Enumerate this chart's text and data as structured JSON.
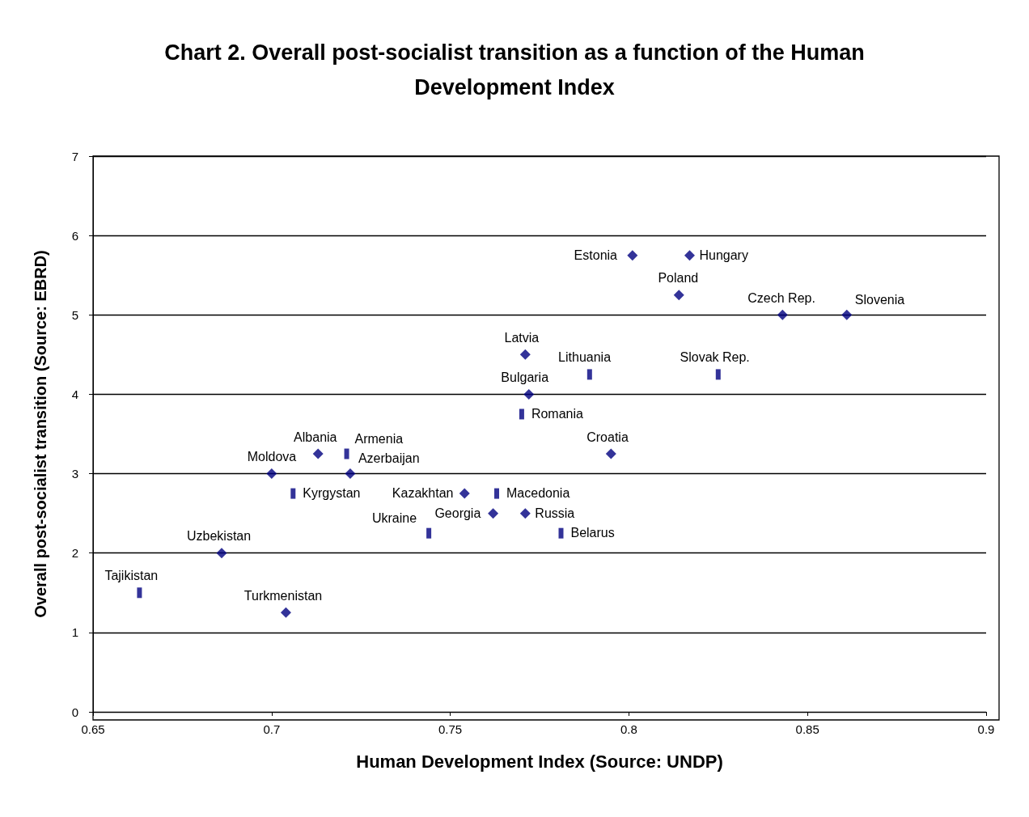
{
  "chart_data": {
    "type": "scatter",
    "title": "Chart 2. Overall post-socialist transition as a function of the Human\nDevelopment Index",
    "xlabel": "Human Development Index (Source: UNDP)",
    "ylabel": "Overall post-socialist transition (Source: EBRD)",
    "xlim": [
      0.65,
      0.9
    ],
    "xticks": [
      0.65,
      0.7,
      0.75,
      0.8,
      0.85,
      0.9
    ],
    "ylim": [
      0,
      7
    ],
    "yticks": [
      0,
      1,
      2,
      3,
      4,
      5,
      6,
      7
    ],
    "grid": "y",
    "series": [
      {
        "color": "#000080",
        "marker": "diamond",
        "x": [
          0.801,
          0.817,
          0.814,
          0.843,
          0.861,
          0.771,
          0.772,
          0.795,
          0.713,
          0.7,
          0.722,
          0.754,
          0.762,
          0.771,
          0.686,
          0.704
        ],
        "values": [
          5.75,
          5.75,
          5.25,
          5,
          5,
          4.5,
          4,
          3.25,
          3.25,
          3,
          3,
          2.75,
          2.5,
          2.5,
          2,
          1.25
        ]
      },
      {
        "color": "#000080",
        "marker": "square",
        "x": [
          0.789,
          0.825,
          0.77,
          0.721,
          0.706,
          0.763,
          0.781,
          0.744,
          0.663
        ],
        "values": [
          4.25,
          4.25,
          3.75,
          3.25,
          2.75,
          2.75,
          2.25,
          2.25,
          1.5
        ]
      }
    ],
    "annotations": [
      {
        "text": "Estonia",
        "x": 0.801,
        "y": 5.75
      },
      {
        "text": "Hungary",
        "x": 0.817,
        "y": 5.75
      },
      {
        "text": "Poland",
        "x": 0.814,
        "y": 5.25
      },
      {
        "text": "Czech Rep.",
        "x": 0.843,
        "y": 5
      },
      {
        "text": "Slovenia",
        "x": 0.861,
        "y": 5
      },
      {
        "text": "Latvia",
        "x": 0.771,
        "y": 4.5
      },
      {
        "text": "Lithuania",
        "x": 0.789,
        "y": 4.25
      },
      {
        "text": "Slovak Rep.",
        "x": 0.825,
        "y": 4.25
      },
      {
        "text": "Bulgaria",
        "x": 0.772,
        "y": 4
      },
      {
        "text": "Romania",
        "x": 0.77,
        "y": 3.75
      },
      {
        "text": "Croatia",
        "x": 0.795,
        "y": 3.25
      },
      {
        "text": "Albania",
        "x": 0.713,
        "y": 3.25
      },
      {
        "text": "Armenia",
        "x": 0.721,
        "y": 3.25
      },
      {
        "text": "Moldova",
        "x": 0.7,
        "y": 3
      },
      {
        "text": "Azerbaijan",
        "x": 0.722,
        "y": 3
      },
      {
        "text": "Kyrgystan",
        "x": 0.706,
        "y": 2.75
      },
      {
        "text": "Kazakhtan",
        "x": 0.754,
        "y": 2.75
      },
      {
        "text": "Macedonia",
        "x": 0.763,
        "y": 2.75
      },
      {
        "text": "Georgia",
        "x": 0.762,
        "y": 2.5
      },
      {
        "text": "Russia",
        "x": 0.771,
        "y": 2.5
      },
      {
        "text": "Belarus",
        "x": 0.781,
        "y": 2.25
      },
      {
        "text": "Ukraine",
        "x": 0.744,
        "y": 2.25
      },
      {
        "text": "Uzbekistan",
        "x": 0.686,
        "y": 2
      },
      {
        "text": "Tajikistan",
        "x": 0.663,
        "y": 1.5
      },
      {
        "text": "Turkmenistan",
        "x": 0.704,
        "y": 1.25
      }
    ]
  }
}
